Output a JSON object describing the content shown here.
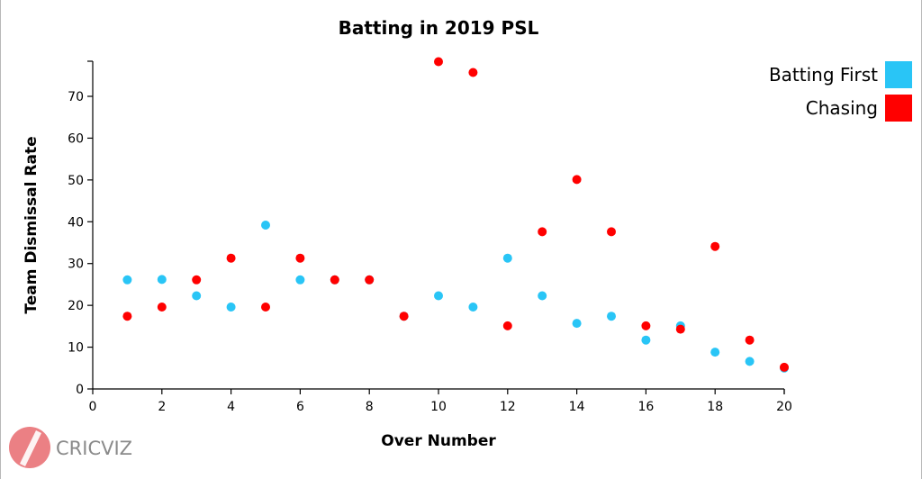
{
  "chart_data": {
    "type": "scatter",
    "title": "Batting in 2019 PSL",
    "xlabel": "Over Number",
    "ylabel": "Team Dismissal Rate",
    "xlim": [
      0,
      20
    ],
    "ylim": [
      0,
      78
    ],
    "xticks": [
      0,
      2,
      4,
      6,
      8,
      10,
      12,
      14,
      16,
      18,
      20
    ],
    "yticks": [
      0,
      10,
      20,
      30,
      40,
      50,
      60,
      70
    ],
    "grid": false,
    "legend_position": "top-right",
    "series": [
      {
        "name": "Batting First",
        "color": "#29c5f6",
        "points": [
          [
            1,
            26.1
          ],
          [
            2,
            26.2
          ],
          [
            3,
            22.3
          ],
          [
            4,
            19.6
          ],
          [
            5,
            39.2
          ],
          [
            6,
            26.1
          ],
          [
            7,
            26.1
          ],
          [
            8,
            26.1
          ],
          [
            9,
            17.4
          ],
          [
            10,
            22.3
          ],
          [
            11,
            19.6
          ],
          [
            12,
            31.3
          ],
          [
            13,
            22.3
          ],
          [
            14,
            15.7
          ],
          [
            15,
            17.4
          ],
          [
            16,
            11.7
          ],
          [
            17,
            15.1
          ],
          [
            18,
            8.8
          ],
          [
            19,
            6.6
          ],
          [
            20,
            5.0
          ]
        ]
      },
      {
        "name": "Chasing",
        "color": "#ff0000",
        "points": [
          [
            1,
            17.4
          ],
          [
            2,
            19.6
          ],
          [
            3,
            26.1
          ],
          [
            4,
            31.3
          ],
          [
            5,
            19.6
          ],
          [
            6,
            31.3
          ],
          [
            7,
            26.1
          ],
          [
            8,
            26.1
          ],
          [
            9,
            17.4
          ],
          [
            10,
            78.3
          ],
          [
            11,
            75.7
          ],
          [
            12,
            15.1
          ],
          [
            13,
            37.6
          ],
          [
            14,
            50.1
          ],
          [
            15,
            37.6
          ],
          [
            16,
            15.1
          ],
          [
            17,
            14.3
          ],
          [
            18,
            34.1
          ],
          [
            19,
            11.7
          ],
          [
            20,
            5.2
          ]
        ]
      }
    ]
  },
  "watermark": {
    "brand": "CRICVIZ"
  }
}
